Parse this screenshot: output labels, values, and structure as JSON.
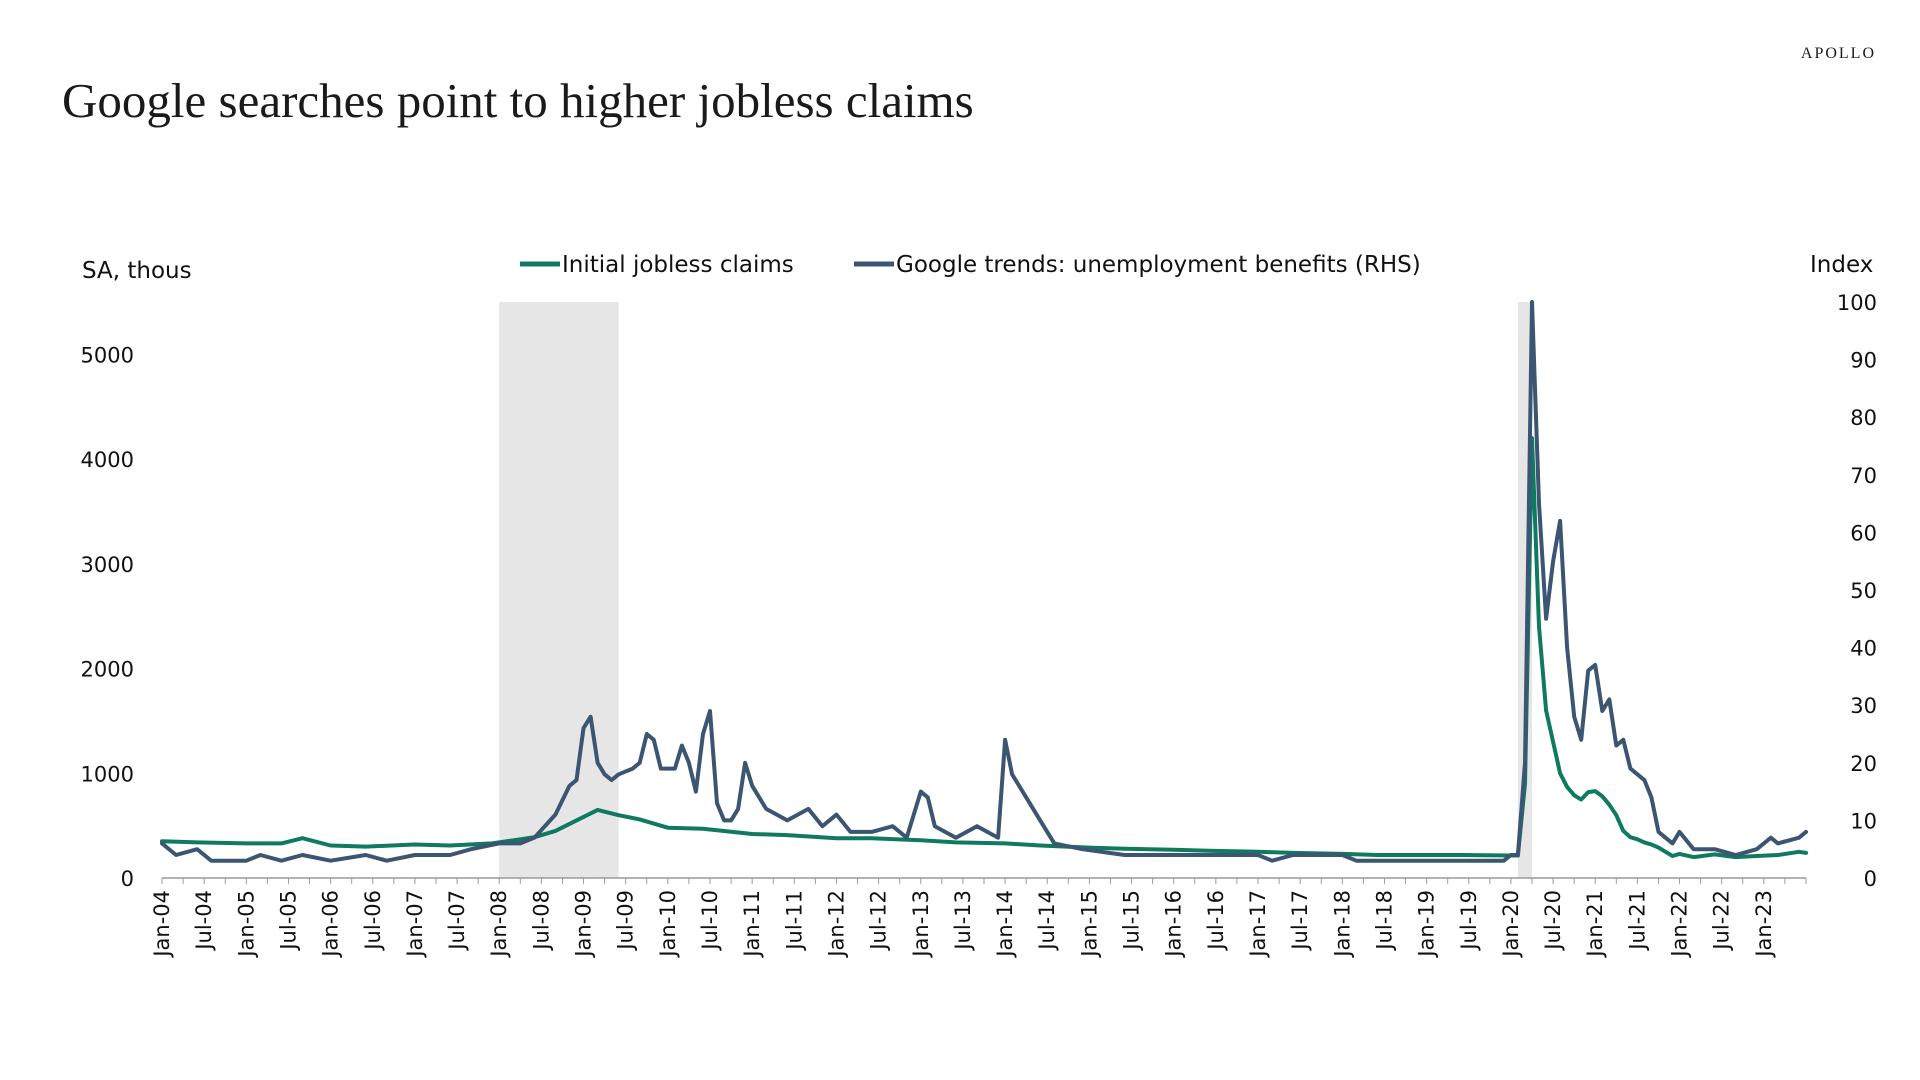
{
  "brand": "APOLLO",
  "title": "Google searches point to higher jobless claims",
  "chart_data": {
    "type": "line",
    "ylabel_left": "SA, thous",
    "ylabel_right": "Index",
    "ylim_left": [
      0,
      5500
    ],
    "ylim_right": [
      0,
      100
    ],
    "yticks_left": [
      0,
      1000,
      2000,
      3000,
      4000,
      5000
    ],
    "yticks_right": [
      0,
      10,
      20,
      30,
      40,
      50,
      60,
      70,
      80,
      90,
      100
    ],
    "x_start": "2004-01",
    "x_end": "2023-07",
    "x_tick_labels": [
      "Jan-04",
      "Jul-04",
      "Jan-05",
      "Jul-05",
      "Jan-06",
      "Jul-06",
      "Jan-07",
      "Jul-07",
      "Jan-08",
      "Jul-08",
      "Jan-09",
      "Jul-09",
      "Jan-10",
      "Jul-10",
      "Jan-11",
      "Jul-11",
      "Jan-12",
      "Jul-12",
      "Jan-13",
      "Jul-13",
      "Jan-14",
      "Jul-14",
      "Jan-15",
      "Jul-15",
      "Jan-16",
      "Jul-16",
      "Jan-17",
      "Jul-17",
      "Jan-18",
      "Jul-18",
      "Jan-19",
      "Jul-19",
      "Jan-20",
      "Jul-20",
      "Jan-21",
      "Jul-21",
      "Jan-22",
      "Jul-22",
      "Jan-23"
    ],
    "recessions": [
      {
        "start": "2008-01",
        "end": "2009-06"
      },
      {
        "start": "2020-02",
        "end": "2020-04"
      }
    ],
    "series": [
      {
        "name": "Initial jobless claims",
        "axis": "left",
        "color": "#0f7a5f",
        "points": [
          [
            "2004-01",
            350
          ],
          [
            "2004-06",
            340
          ],
          [
            "2005-01",
            330
          ],
          [
            "2005-06",
            330
          ],
          [
            "2005-09",
            380
          ],
          [
            "2006-01",
            310
          ],
          [
            "2006-06",
            300
          ],
          [
            "2007-01",
            320
          ],
          [
            "2007-06",
            310
          ],
          [
            "2007-12",
            330
          ],
          [
            "2008-03",
            360
          ],
          [
            "2008-06",
            390
          ],
          [
            "2008-09",
            450
          ],
          [
            "2008-12",
            550
          ],
          [
            "2009-03",
            650
          ],
          [
            "2009-06",
            600
          ],
          [
            "2009-09",
            560
          ],
          [
            "2010-01",
            480
          ],
          [
            "2010-06",
            470
          ],
          [
            "2011-01",
            420
          ],
          [
            "2011-06",
            410
          ],
          [
            "2012-01",
            380
          ],
          [
            "2012-06",
            380
          ],
          [
            "2013-01",
            360
          ],
          [
            "2013-06",
            340
          ],
          [
            "2014-01",
            330
          ],
          [
            "2014-06",
            310
          ],
          [
            "2015-01",
            290
          ],
          [
            "2015-06",
            280
          ],
          [
            "2016-01",
            270
          ],
          [
            "2016-06",
            260
          ],
          [
            "2017-01",
            250
          ],
          [
            "2017-06",
            240
          ],
          [
            "2018-01",
            230
          ],
          [
            "2018-06",
            220
          ],
          [
            "2019-01",
            220
          ],
          [
            "2019-06",
            220
          ],
          [
            "2020-01",
            215
          ],
          [
            "2020-02",
            215
          ],
          [
            "2020-03",
            900
          ],
          [
            "2020-04",
            4200
          ],
          [
            "2020-05",
            2400
          ],
          [
            "2020-06",
            1600
          ],
          [
            "2020-07",
            1300
          ],
          [
            "2020-08",
            1000
          ],
          [
            "2020-09",
            870
          ],
          [
            "2020-10",
            790
          ],
          [
            "2020-11",
            750
          ],
          [
            "2020-12",
            820
          ],
          [
            "2021-01",
            830
          ],
          [
            "2021-02",
            780
          ],
          [
            "2021-03",
            700
          ],
          [
            "2021-04",
            600
          ],
          [
            "2021-05",
            450
          ],
          [
            "2021-06",
            390
          ],
          [
            "2021-07",
            370
          ],
          [
            "2021-08",
            340
          ],
          [
            "2021-09",
            320
          ],
          [
            "2021-10",
            290
          ],
          [
            "2021-11",
            250
          ],
          [
            "2021-12",
            210
          ],
          [
            "2022-01",
            230
          ],
          [
            "2022-03",
            200
          ],
          [
            "2022-06",
            225
          ],
          [
            "2022-09",
            200
          ],
          [
            "2022-12",
            210
          ],
          [
            "2023-03",
            220
          ],
          [
            "2023-06",
            250
          ],
          [
            "2023-07",
            240
          ]
        ]
      },
      {
        "name": "Google trends: unemployment benefits (RHS)",
        "axis": "right",
        "color": "#3b5573",
        "points": [
          [
            "2004-01",
            6
          ],
          [
            "2004-03",
            4
          ],
          [
            "2004-06",
            5
          ],
          [
            "2004-08",
            3
          ],
          [
            "2005-01",
            3
          ],
          [
            "2005-03",
            4
          ],
          [
            "2005-06",
            3
          ],
          [
            "2005-09",
            4
          ],
          [
            "2006-01",
            3
          ],
          [
            "2006-06",
            4
          ],
          [
            "2006-09",
            3
          ],
          [
            "2007-01",
            4
          ],
          [
            "2007-06",
            4
          ],
          [
            "2007-09",
            5
          ],
          [
            "2008-01",
            6
          ],
          [
            "2008-04",
            6
          ],
          [
            "2008-06",
            7
          ],
          [
            "2008-09",
            11
          ],
          [
            "2008-11",
            16
          ],
          [
            "2008-12",
            17
          ],
          [
            "2009-01",
            26
          ],
          [
            "2009-02",
            28
          ],
          [
            "2009-03",
            20
          ],
          [
            "2009-04",
            18
          ],
          [
            "2009-05",
            17
          ],
          [
            "2009-06",
            18
          ],
          [
            "2009-08",
            19
          ],
          [
            "2009-09",
            20
          ],
          [
            "2009-10",
            25
          ],
          [
            "2009-11",
            24
          ],
          [
            "2009-12",
            19
          ],
          [
            "2010-01",
            19
          ],
          [
            "2010-02",
            19
          ],
          [
            "2010-03",
            23
          ],
          [
            "2010-04",
            20
          ],
          [
            "2010-05",
            15
          ],
          [
            "2010-06",
            25
          ],
          [
            "2010-07",
            29
          ],
          [
            "2010-08",
            13
          ],
          [
            "2010-09",
            10
          ],
          [
            "2010-10",
            10
          ],
          [
            "2010-11",
            12
          ],
          [
            "2010-12",
            20
          ],
          [
            "2011-01",
            16
          ],
          [
            "2011-03",
            12
          ],
          [
            "2011-06",
            10
          ],
          [
            "2011-09",
            12
          ],
          [
            "2011-11",
            9
          ],
          [
            "2012-01",
            11
          ],
          [
            "2012-03",
            8
          ],
          [
            "2012-06",
            8
          ],
          [
            "2012-09",
            9
          ],
          [
            "2012-11",
            7
          ],
          [
            "2013-01",
            15
          ],
          [
            "2013-02",
            14
          ],
          [
            "2013-03",
            9
          ],
          [
            "2013-06",
            7
          ],
          [
            "2013-09",
            9
          ],
          [
            "2013-12",
            7
          ],
          [
            "2014-01",
            24
          ],
          [
            "2014-02",
            18
          ],
          [
            "2014-04",
            14
          ],
          [
            "2014-06",
            10
          ],
          [
            "2014-08",
            6
          ],
          [
            "2014-12",
            5
          ],
          [
            "2015-06",
            4
          ],
          [
            "2016-01",
            4
          ],
          [
            "2016-06",
            4
          ],
          [
            "2017-01",
            4
          ],
          [
            "2017-03",
            3
          ],
          [
            "2017-06",
            4
          ],
          [
            "2018-01",
            4
          ],
          [
            "2018-03",
            3
          ],
          [
            "2018-06",
            3
          ],
          [
            "2019-01",
            3
          ],
          [
            "2019-06",
            3
          ],
          [
            "2019-12",
            3
          ],
          [
            "2020-01",
            4
          ],
          [
            "2020-02",
            4
          ],
          [
            "2020-03",
            20
          ],
          [
            "2020-04",
            100
          ],
          [
            "2020-05",
            65
          ],
          [
            "2020-06",
            45
          ],
          [
            "2020-07",
            55
          ],
          [
            "2020-08",
            62
          ],
          [
            "2020-09",
            40
          ],
          [
            "2020-10",
            28
          ],
          [
            "2020-11",
            24
          ],
          [
            "2020-12",
            36
          ],
          [
            "2021-01",
            37
          ],
          [
            "2021-02",
            29
          ],
          [
            "2021-03",
            31
          ],
          [
            "2021-04",
            23
          ],
          [
            "2021-05",
            24
          ],
          [
            "2021-06",
            19
          ],
          [
            "2021-07",
            18
          ],
          [
            "2021-08",
            17
          ],
          [
            "2021-09",
            14
          ],
          [
            "2021-10",
            8
          ],
          [
            "2021-11",
            7
          ],
          [
            "2021-12",
            6
          ],
          [
            "2022-01",
            8
          ],
          [
            "2022-03",
            5
          ],
          [
            "2022-06",
            5
          ],
          [
            "2022-09",
            4
          ],
          [
            "2022-12",
            5
          ],
          [
            "2023-02",
            7
          ],
          [
            "2023-03",
            6
          ],
          [
            "2023-06",
            7
          ],
          [
            "2023-07",
            8
          ]
        ]
      }
    ]
  }
}
